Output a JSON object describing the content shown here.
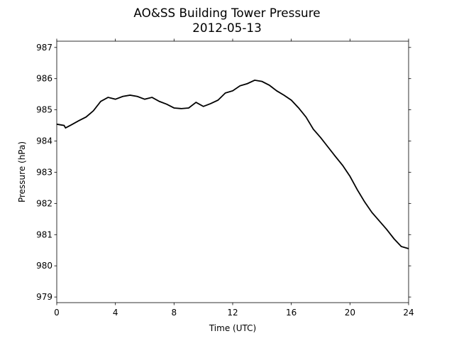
{
  "chart_data": {
    "type": "line",
    "title": "AO&SS Building Tower Pressure",
    "subtitle": "2012-05-13",
    "xlabel": "Time (UTC)",
    "ylabel": "Pressure (hPa)",
    "x": [
      0,
      0.5,
      0.6,
      1,
      1.5,
      2,
      2.5,
      3,
      3.5,
      4,
      4.5,
      5,
      5.5,
      6,
      6.5,
      7,
      7.5,
      8,
      8.5,
      9,
      9.5,
      10,
      10.5,
      11,
      11.5,
      12,
      12.5,
      13,
      13.5,
      14,
      14.5,
      15,
      15.5,
      16,
      16.5,
      17,
      17.5,
      18,
      18.5,
      19,
      19.5,
      20,
      20.5,
      21,
      21.5,
      22,
      22.5,
      23,
      23.5,
      24
    ],
    "series": [
      {
        "name": "Pressure",
        "color": "#000000",
        "values": [
          984.54,
          984.5,
          984.42,
          984.52,
          984.65,
          984.77,
          984.97,
          985.27,
          985.4,
          985.34,
          985.43,
          985.47,
          985.43,
          985.34,
          985.4,
          985.27,
          985.18,
          985.06,
          985.04,
          985.06,
          985.24,
          985.11,
          985.2,
          985.31,
          985.54,
          985.61,
          985.77,
          985.84,
          985.95,
          985.91,
          985.79,
          985.61,
          985.47,
          985.31,
          985.06,
          984.77,
          984.38,
          984.11,
          983.81,
          983.51,
          983.22,
          982.87,
          982.44,
          982.05,
          981.71,
          981.44,
          981.17,
          980.87,
          980.62,
          980.55
        ]
      }
    ],
    "xlim": [
      0,
      24
    ],
    "xticks": [
      0,
      4,
      8,
      12,
      16,
      20,
      24
    ],
    "ylim": [
      978.82,
      987.2
    ],
    "yticks": [
      979,
      980,
      981,
      982,
      983,
      984,
      985,
      986,
      987
    ],
    "grid": false
  }
}
